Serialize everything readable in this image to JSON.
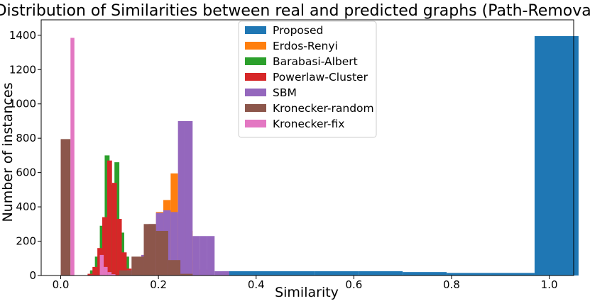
{
  "chart_data": {
    "type": "bar",
    "title": "Distribution of Similarities between real and predicted graphs (Path-Removal)",
    "xlabel": "Similarity",
    "ylabel": "Number of instances",
    "xlim": [
      -0.04,
      1.05
    ],
    "ylim": [
      0,
      1490
    ],
    "xticks": [
      0.0,
      0.2,
      0.4,
      0.6,
      0.8,
      1.0
    ],
    "xtick_labels": [
      "0.0",
      "0.2",
      "0.4",
      "0.6",
      "0.8",
      "1.0"
    ],
    "yticks": [
      0,
      200,
      400,
      600,
      800,
      1000,
      1200,
      1400
    ],
    "ytick_labels": [
      "0",
      "200",
      "400",
      "600",
      "800",
      "1000",
      "1200",
      "1400"
    ],
    "grid": false,
    "legend_position": "top-center",
    "series": [
      {
        "name": "Proposed",
        "color": "#1f77b4",
        "bins": [
          {
            "x0": 0.33,
            "x1": 0.42,
            "y": 25
          },
          {
            "x0": 0.42,
            "x1": 0.52,
            "y": 25
          },
          {
            "x0": 0.52,
            "x1": 0.61,
            "y": 25
          },
          {
            "x0": 0.61,
            "x1": 0.7,
            "y": 25
          },
          {
            "x0": 0.7,
            "x1": 0.79,
            "y": 20
          },
          {
            "x0": 0.79,
            "x1": 0.88,
            "y": 15
          },
          {
            "x0": 0.88,
            "x1": 0.97,
            "y": 15
          },
          {
            "x0": 0.97,
            "x1": 1.06,
            "y": 1395
          }
        ]
      },
      {
        "name": "Erdos-Renyi",
        "color": "#ff7f0e",
        "bins": [
          {
            "x0": 0.165,
            "x1": 0.18,
            "y": 120
          },
          {
            "x0": 0.18,
            "x1": 0.195,
            "y": 200
          },
          {
            "x0": 0.195,
            "x1": 0.21,
            "y": 370
          },
          {
            "x0": 0.21,
            "x1": 0.225,
            "y": 440
          },
          {
            "x0": 0.225,
            "x1": 0.24,
            "y": 595
          },
          {
            "x0": 0.24,
            "x1": 0.255,
            "y": 360
          },
          {
            "x0": 0.255,
            "x1": 0.27,
            "y": 260
          },
          {
            "x0": 0.27,
            "x1": 0.285,
            "y": 90
          },
          {
            "x0": 0.285,
            "x1": 0.3,
            "y": 35
          }
        ]
      },
      {
        "name": "Barabasi-Albert",
        "color": "#2ca02c",
        "bins": [
          {
            "x0": 0.06,
            "x1": 0.07,
            "y": 30
          },
          {
            "x0": 0.07,
            "x1": 0.08,
            "y": 110
          },
          {
            "x0": 0.08,
            "x1": 0.09,
            "y": 290
          },
          {
            "x0": 0.09,
            "x1": 0.1,
            "y": 700
          },
          {
            "x0": 0.1,
            "x1": 0.11,
            "y": 530
          },
          {
            "x0": 0.11,
            "x1": 0.12,
            "y": 660
          },
          {
            "x0": 0.12,
            "x1": 0.13,
            "y": 250
          },
          {
            "x0": 0.13,
            "x1": 0.14,
            "y": 110
          },
          {
            "x0": 0.14,
            "x1": 0.15,
            "y": 10
          }
        ]
      },
      {
        "name": "Powerlaw-Cluster",
        "color": "#d62728",
        "bins": [
          {
            "x0": 0.055,
            "x1": 0.065,
            "y": 10
          },
          {
            "x0": 0.065,
            "x1": 0.075,
            "y": 50
          },
          {
            "x0": 0.075,
            "x1": 0.085,
            "y": 160
          },
          {
            "x0": 0.085,
            "x1": 0.095,
            "y": 340
          },
          {
            "x0": 0.095,
            "x1": 0.105,
            "y": 670
          },
          {
            "x0": 0.105,
            "x1": 0.115,
            "y": 540
          },
          {
            "x0": 0.115,
            "x1": 0.125,
            "y": 330
          },
          {
            "x0": 0.125,
            "x1": 0.135,
            "y": 135
          },
          {
            "x0": 0.135,
            "x1": 0.145,
            "y": 40
          }
        ]
      },
      {
        "name": "SBM",
        "color": "#9467bd",
        "bins": [
          {
            "x0": 0.135,
            "x1": 0.15,
            "y": 30
          },
          {
            "x0": 0.15,
            "x1": 0.165,
            "y": 90
          },
          {
            "x0": 0.165,
            "x1": 0.18,
            "y": 120
          },
          {
            "x0": 0.18,
            "x1": 0.195,
            "y": 300
          },
          {
            "x0": 0.195,
            "x1": 0.21,
            "y": 365
          },
          {
            "x0": 0.21,
            "x1": 0.225,
            "y": 380
          },
          {
            "x0": 0.225,
            "x1": 0.24,
            "y": 370
          },
          {
            "x0": 0.24,
            "x1": 0.255,
            "y": 900
          },
          {
            "x0": 0.255,
            "x1": 0.27,
            "y": 900
          },
          {
            "x0": 0.27,
            "x1": 0.285,
            "y": 230
          },
          {
            "x0": 0.285,
            "x1": 0.3,
            "y": 230
          },
          {
            "x0": 0.3,
            "x1": 0.315,
            "y": 230
          },
          {
            "x0": 0.315,
            "x1": 0.33,
            "y": 25
          },
          {
            "x0": 0.33,
            "x1": 0.345,
            "y": 25
          }
        ]
      },
      {
        "name": "Kronecker-random",
        "color": "#8c564b",
        "bins": [
          {
            "x0": 0.0,
            "x1": 0.02,
            "y": 795
          },
          {
            "x0": 0.12,
            "x1": 0.145,
            "y": 30
          },
          {
            "x0": 0.145,
            "x1": 0.17,
            "y": 110
          },
          {
            "x0": 0.17,
            "x1": 0.195,
            "y": 300
          },
          {
            "x0": 0.195,
            "x1": 0.22,
            "y": 260
          },
          {
            "x0": 0.22,
            "x1": 0.245,
            "y": 90
          },
          {
            "x0": 0.245,
            "x1": 0.27,
            "y": 10
          }
        ]
      },
      {
        "name": "Kronecker-fix",
        "color": "#e377c2",
        "bins": [
          {
            "x0": 0.02,
            "x1": 0.028,
            "y": 1385
          },
          {
            "x0": 0.08,
            "x1": 0.088,
            "y": 120
          },
          {
            "x0": 0.088,
            "x1": 0.096,
            "y": 50
          },
          {
            "x0": 0.096,
            "x1": 0.104,
            "y": 20
          },
          {
            "x0": 0.104,
            "x1": 0.112,
            "y": 8
          }
        ]
      }
    ]
  }
}
